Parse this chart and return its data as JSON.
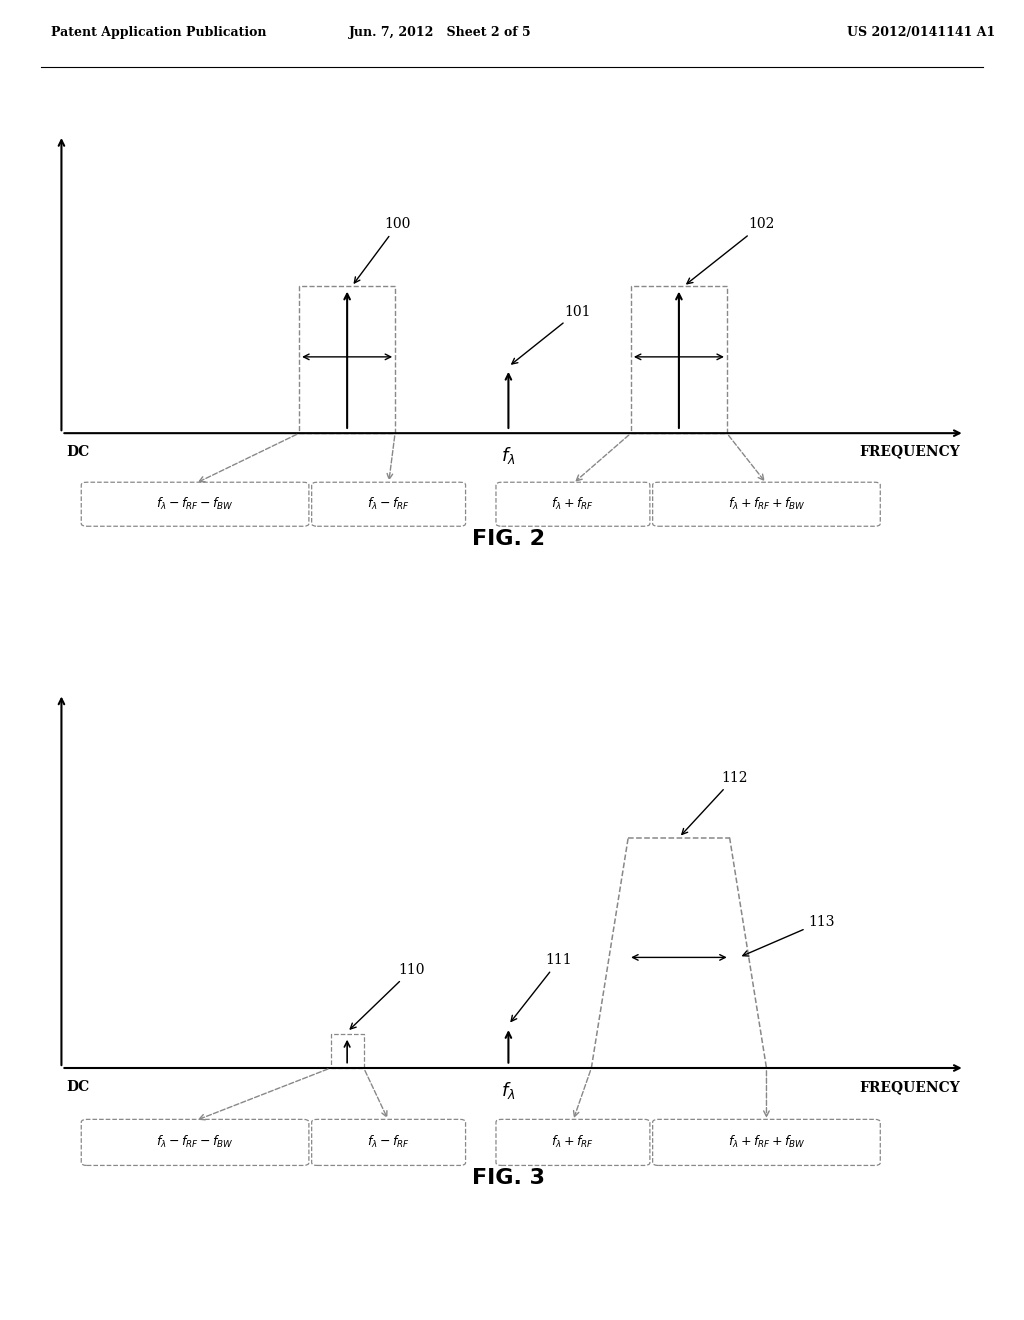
{
  "header_left": "Patent Application Publication",
  "header_mid": "Jun. 7, 2012   Sheet 2 of 5",
  "header_right": "US 2012/0141141 A1",
  "fig2_title": "FIG. 2",
  "fig3_title": "FIG. 3",
  "bg_color": "#ffffff",
  "line_color": "#000000",
  "dashed_color": "#888888",
  "fig2_labels": [
    "$f_{\\lambda}-f_{RF}-f_{BW}$",
    "$f_{\\lambda}-f_{RF}$",
    "$f_{\\lambda}+f_{RF}$",
    "$f_{\\lambda}+f_{RF}+f_{BW}$"
  ],
  "fig3_labels": [
    "$f_{\\lambda}-f_{RF}-f_{BW}$",
    "$f_{\\lambda}-f_{RF}$",
    "$f_{\\lambda}+f_{RF}$",
    "$f_{\\lambda}+f_{RF}+f_{BW}$"
  ]
}
